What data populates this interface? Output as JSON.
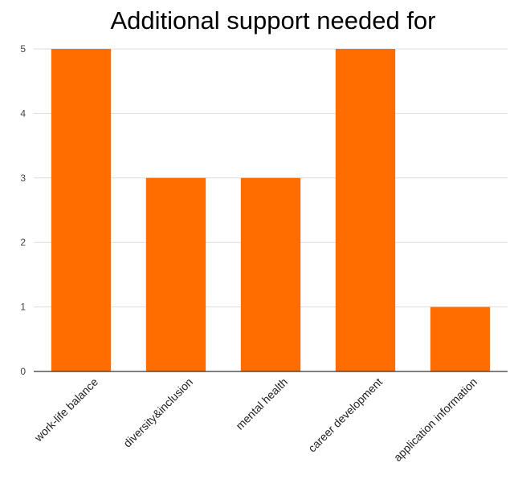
{
  "chart_data": {
    "type": "bar",
    "title": "Additional support needed for",
    "xlabel": "",
    "ylabel": "",
    "categories": [
      "work-life balance",
      "diversity&inclusion",
      "mental health",
      "career development",
      "application information"
    ],
    "values": [
      5,
      3,
      3,
      5,
      1
    ],
    "y_ticks": [
      "0",
      "1",
      "2",
      "3",
      "4",
      "5"
    ],
    "ylim": [
      0,
      5
    ],
    "grid": true,
    "legend": "none",
    "colors": {
      "bar": "#ff6d00",
      "grid": "#dddddd",
      "axis": "#333333"
    }
  }
}
